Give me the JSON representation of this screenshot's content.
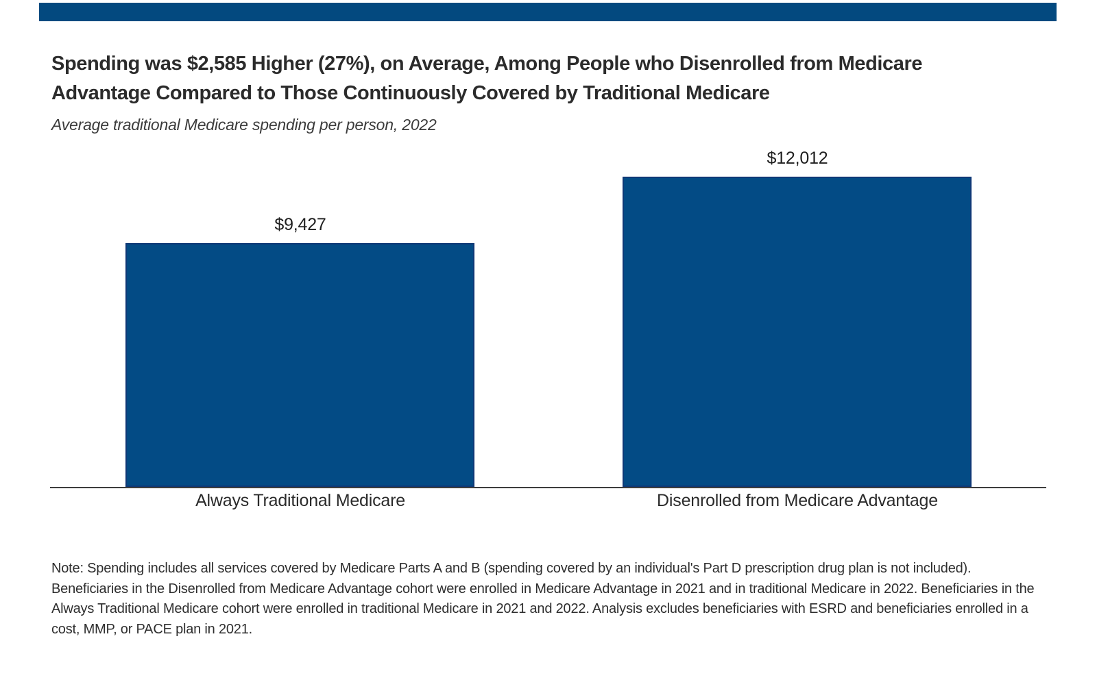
{
  "page": {
    "background_color": "#ffffff",
    "accent_navy": "#03497f"
  },
  "header": {
    "top_rule_color": "#03497f",
    "title_lines": [
      "Spending was $2,585 Higher (27%), on Average, Among People who Disenrolled from Medicare",
      "Advantage Compared to Those Continuously Covered by Traditional Medicare"
    ],
    "subtitle": "Average traditional Medicare spending per person, 2022"
  },
  "chart_data": {
    "type": "bar",
    "title": "Spending was $2,585 Higher (27%), on Average, Among People who Disenrolled from Medicare Advantage Compared to Those Continuously Covered by Traditional Medicare",
    "subtitle": "Average traditional Medicare spending per person, 2022",
    "categories": [
      "Always Traditional Medicare",
      "Disenrolled from Medicare Advantage"
    ],
    "values": [
      9427,
      12012
    ],
    "value_labels": [
      "$9,427",
      "$12,012"
    ],
    "bar_color": "#034b85",
    "xlabel": "",
    "ylabel": "",
    "ylim": [
      0,
      12700
    ],
    "grid": false,
    "legend": "none",
    "y_axis_ticks_visible": false,
    "difference_note": "$2,585 higher (27%)"
  },
  "note": {
    "lines": [
      "Note: Spending includes all services covered by Medicare Parts A and B (spending covered by an individual's Part D prescription drug plan is not included).",
      "Beneficiaries in the Disenrolled from Medicare Advantage cohort were enrolled in Medicare Advantage in 2021 and in traditional Medicare in 2022. Beneficiaries in the",
      "Always Traditional Medicare cohort were enrolled in traditional Medicare in 2021 and 2022. Analysis excludes beneficiaries with ESRD and beneficiaries enrolled in a",
      "cost, MMP, or PACE plan in 2021."
    ]
  }
}
